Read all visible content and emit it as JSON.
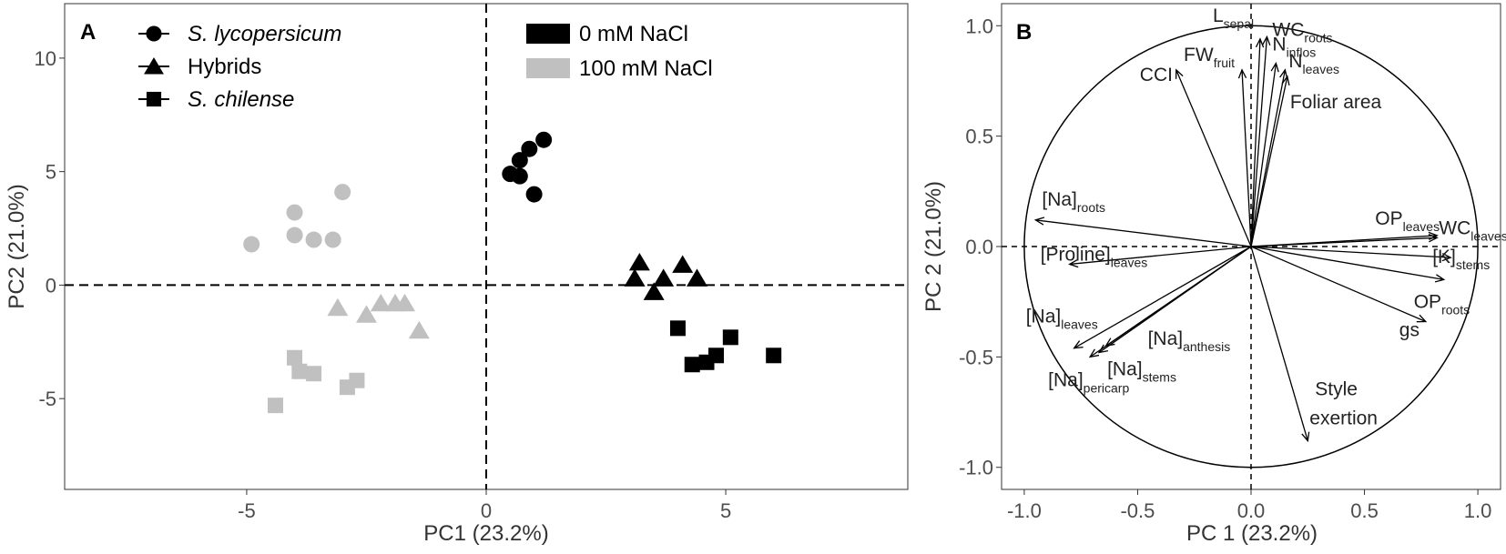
{
  "chart_data": [
    {
      "panel_label": "A",
      "type": "scatter",
      "xlabel": "PC1 (23.2%)",
      "ylabel": "PC2 (21.0%)",
      "xlim": [
        -8.8,
        8.8
      ],
      "ylim": [
        -9.0,
        12.4
      ],
      "x_ticks": [
        -5,
        0,
        5
      ],
      "y_ticks": [
        -5,
        0,
        5,
        10
      ],
      "zero_lines": "dashed",
      "grid": false,
      "legend": {
        "placement": "top-left",
        "shapes": [
          {
            "label": "S. lycopersicum",
            "shape": "circle",
            "italic": true
          },
          {
            "label": "Hybrids",
            "shape": "triangle",
            "italic": false
          },
          {
            "label": "S. chilense",
            "shape": "square",
            "italic": true
          }
        ],
        "treatments": [
          {
            "label": "0 mM NaCl",
            "color": "#000000"
          },
          {
            "label": "100 mM NaCl",
            "color": "#c0c0c0"
          }
        ]
      },
      "series": [
        {
          "group": "S. lycopersicum",
          "treatment": "0 mM NaCl",
          "shape": "circle",
          "color": "#000000",
          "points": [
            [
              0.5,
              4.9
            ],
            [
              0.7,
              5.5
            ],
            [
              0.9,
              6.0
            ],
            [
              1.2,
              6.4
            ],
            [
              0.7,
              4.8
            ],
            [
              1.0,
              4.0
            ]
          ]
        },
        {
          "group": "Hybrids",
          "treatment": "0 mM NaCl",
          "shape": "triangle",
          "color": "#000000",
          "points": [
            [
              3.2,
              1.0
            ],
            [
              3.1,
              0.3
            ],
            [
              3.7,
              0.3
            ],
            [
              4.1,
              0.9
            ],
            [
              4.4,
              0.3
            ],
            [
              3.5,
              -0.3
            ]
          ]
        },
        {
          "group": "S. chilense",
          "treatment": "0 mM NaCl",
          "shape": "square",
          "color": "#000000",
          "points": [
            [
              4.0,
              -1.9
            ],
            [
              4.3,
              -3.5
            ],
            [
              4.6,
              -3.4
            ],
            [
              4.8,
              -3.1
            ],
            [
              5.1,
              -2.3
            ],
            [
              6.0,
              -3.1
            ]
          ]
        },
        {
          "group": "S. lycopersicum",
          "treatment": "100 mM NaCl",
          "shape": "circle",
          "color": "#c0c0c0",
          "points": [
            [
              -4.9,
              1.8
            ],
            [
              -4.0,
              3.2
            ],
            [
              -4.0,
              2.2
            ],
            [
              -3.6,
              2.0
            ],
            [
              -3.2,
              2.0
            ],
            [
              -3.0,
              4.1
            ]
          ]
        },
        {
          "group": "Hybrids",
          "treatment": "100 mM NaCl",
          "shape": "triangle",
          "color": "#c0c0c0",
          "points": [
            [
              -3.1,
              -1.0
            ],
            [
              -2.5,
              -1.3
            ],
            [
              -2.2,
              -0.8
            ],
            [
              -1.9,
              -0.8
            ],
            [
              -1.7,
              -0.8
            ],
            [
              -1.4,
              -2.0
            ]
          ]
        },
        {
          "group": "S. chilense",
          "treatment": "100 mM NaCl",
          "shape": "square",
          "color": "#c0c0c0",
          "points": [
            [
              -4.0,
              -3.2
            ],
            [
              -3.9,
              -3.8
            ],
            [
              -3.6,
              -3.9
            ],
            [
              -2.9,
              -4.5
            ],
            [
              -2.7,
              -4.2
            ],
            [
              -4.4,
              -5.3
            ]
          ]
        }
      ]
    },
    {
      "panel_label": "B",
      "type": "biplot",
      "xlabel": "PC 1 (23.2%)",
      "ylabel": "PC 2 (21.0%)",
      "xlim": [
        -1.1,
        1.1
      ],
      "ylim": [
        -1.1,
        1.1
      ],
      "x_ticks": [
        "-1.0",
        "-0.5",
        "0.0",
        "0.5",
        "1.0"
      ],
      "y_ticks": [
        "-1.0",
        "-0.5",
        "0.0",
        "0.5",
        "1.0"
      ],
      "unit_circle": true,
      "zero_lines": "dashed",
      "loadings": [
        {
          "label": "CCI",
          "sub": "",
          "x": -0.33,
          "y": 0.8
        },
        {
          "label": "FW",
          "sub": "fruit",
          "x": -0.04,
          "y": 0.8
        },
        {
          "label": "L",
          "sub": "sepal",
          "x": 0.04,
          "y": 0.94
        },
        {
          "label": "WC",
          "sub": "roots",
          "x": 0.07,
          "y": 0.95
        },
        {
          "label": "N",
          "sub": "inflos",
          "x": 0.11,
          "y": 0.83
        },
        {
          "label": "N",
          "sub": "leaves",
          "x": 0.15,
          "y": 0.8
        },
        {
          "label": "Foliar area",
          "sub": "",
          "x": 0.16,
          "y": 0.77
        },
        {
          "label": "[Na]",
          "sub": "roots",
          "x": -0.95,
          "y": 0.12
        },
        {
          "label": "[Proline]",
          "sub": "leaves",
          "x": -0.8,
          "y": -0.08
        },
        {
          "label": "OP",
          "sub": "leaves",
          "x": 0.82,
          "y": 0.05
        },
        {
          "label": "WC",
          "sub": "leaves",
          "x": 0.82,
          "y": 0.04
        },
        {
          "label": "[K]",
          "sub": "stems",
          "x": 0.88,
          "y": -0.05
        },
        {
          "label": "OP",
          "sub": "roots",
          "x": 0.85,
          "y": -0.15
        },
        {
          "label": "gs",
          "sub": "",
          "x": 0.77,
          "y": -0.34
        },
        {
          "label": "[Na]",
          "sub": "leaves",
          "x": -0.78,
          "y": -0.46
        },
        {
          "label": "[Na]",
          "sub": "pericarp",
          "x": -0.71,
          "y": -0.5
        },
        {
          "label": "[Na]",
          "sub": "stems",
          "x": -0.67,
          "y": -0.48
        },
        {
          "label": "[Na]",
          "sub": "anthesis",
          "x": -0.64,
          "y": -0.45
        },
        {
          "label": "Style exertion",
          "sub": "",
          "x": 0.25,
          "y": -0.88
        }
      ]
    }
  ]
}
